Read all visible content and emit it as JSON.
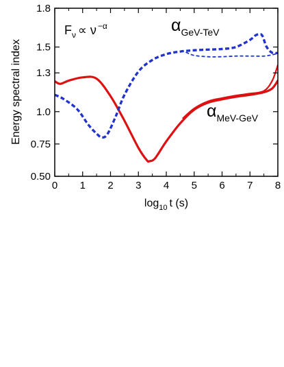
{
  "chart_data": {
    "type": "line",
    "title": "",
    "xlabel": {
      "base": "log",
      "subscript": "10",
      "rest": "t (s)"
    },
    "ylabel": "Energy spectral index",
    "xlim": [
      0,
      8
    ],
    "ylim": [
      0.5,
      1.8
    ],
    "x_ticks": [
      0,
      1,
      2,
      3,
      4,
      5,
      6,
      7,
      8
    ],
    "x_tick_labels": [
      "0",
      "1",
      "2",
      "3",
      "4",
      "5",
      "6",
      "7",
      "8"
    ],
    "y_ticks": [
      0.5,
      0.75,
      1.0,
      1.3,
      1.5,
      1.8
    ],
    "y_tick_labels": [
      "0.50",
      "0.75",
      "1.0",
      "1.3",
      "1.5",
      "1.8"
    ],
    "grid": false,
    "annotations": {
      "formula": {
        "F": "F",
        "F_sub": "ν",
        "prop": "∝ ν",
        "exp": "−α"
      },
      "gev_tev": {
        "alpha": "α",
        "sub": "GeV-TeV"
      },
      "mev_gev": {
        "alpha": "α",
        "sub": "MeV-GeV"
      }
    },
    "series": [
      {
        "id": "mev_gev_a",
        "color": "#dd1111",
        "style": "solid",
        "width": 3.2,
        "x": [
          0,
          0.2,
          0.5,
          1.0,
          1.5,
          2.0,
          2.5,
          3.0,
          3.3,
          3.4,
          3.6,
          4.0,
          4.5,
          5.0,
          5.5,
          6.0,
          6.5,
          7.0,
          7.5,
          7.8,
          8.0
        ],
        "y": [
          1.235,
          1.215,
          1.24,
          1.265,
          1.255,
          1.12,
          0.93,
          0.72,
          0.625,
          0.617,
          0.64,
          0.77,
          0.91,
          1.015,
          1.07,
          1.095,
          1.115,
          1.13,
          1.15,
          1.18,
          1.24
        ]
      },
      {
        "id": "mev_gev_b",
        "color": "#dd1111",
        "style": "solid",
        "width": 2.2,
        "x": [
          4.6,
          5.0,
          5.5,
          6.0,
          6.5,
          7.0,
          7.5,
          7.8,
          8.0
        ],
        "y": [
          0.95,
          1.025,
          1.08,
          1.105,
          1.125,
          1.14,
          1.16,
          1.24,
          1.36
        ]
      },
      {
        "id": "gev_tev_main",
        "color": "#2233cc",
        "style": "dashed",
        "width": 3.4,
        "x": [
          0,
          0.3,
          0.8,
          1.2,
          1.5,
          1.7,
          1.9,
          2.2,
          2.5,
          3.0,
          3.5,
          4.0,
          4.5,
          5.0,
          5.5,
          6.0,
          6.5,
          7.0,
          7.2,
          7.35,
          7.45,
          7.6,
          7.8,
          8.0
        ],
        "y": [
          1.13,
          1.1,
          1.02,
          0.9,
          0.83,
          0.8,
          0.83,
          0.97,
          1.13,
          1.31,
          1.4,
          1.445,
          1.465,
          1.475,
          1.48,
          1.485,
          1.5,
          1.555,
          1.59,
          1.6,
          1.585,
          1.5,
          1.455,
          1.455
        ]
      },
      {
        "id": "gev_tev_lower",
        "color": "#2233cc",
        "style": "dashed",
        "width": 1.8,
        "x": [
          4.7,
          5.0,
          5.5,
          6.0,
          6.5,
          7.0,
          7.5,
          7.8,
          8.0
        ],
        "y": [
          1.46,
          1.435,
          1.425,
          1.425,
          1.43,
          1.43,
          1.43,
          1.44,
          1.45
        ]
      }
    ]
  }
}
